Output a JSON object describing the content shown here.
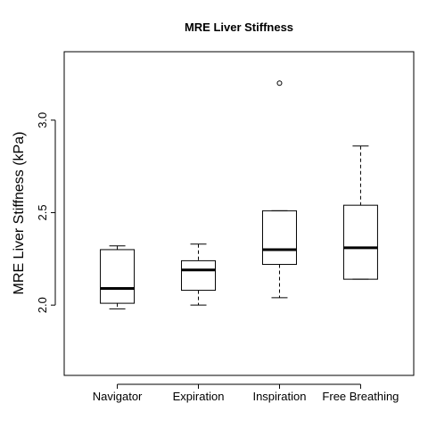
{
  "chart_data": {
    "type": "box",
    "title": "MRE Liver Stiffness",
    "xlabel": "",
    "ylabel": "MRE Liver Stiffness (kPa)",
    "ylim": [
      1.62,
      3.37
    ],
    "yticks": [
      "2.0",
      "2.5",
      "3.0"
    ],
    "grid": false,
    "legend": "none",
    "categories": [
      "Navigator",
      "Expiration",
      "Inspiration",
      "Free Breathing"
    ],
    "boxes": [
      {
        "category": "Navigator",
        "min": 1.98,
        "q1": 2.01,
        "median": 2.09,
        "q3": 2.3,
        "max": 2.32,
        "outliers": []
      },
      {
        "category": "Expiration",
        "min": 2.0,
        "q1": 2.08,
        "median": 2.19,
        "q3": 2.24,
        "max": 2.33,
        "outliers": []
      },
      {
        "category": "Inspiration",
        "min": 2.04,
        "q1": 2.22,
        "median": 2.3,
        "q3": 2.51,
        "max": 2.51,
        "outliers": [
          3.2
        ]
      },
      {
        "category": "Free Breathing",
        "min": 2.14,
        "q1": 2.14,
        "median": 2.31,
        "q3": 2.54,
        "max": 2.86,
        "outliers": []
      }
    ]
  }
}
